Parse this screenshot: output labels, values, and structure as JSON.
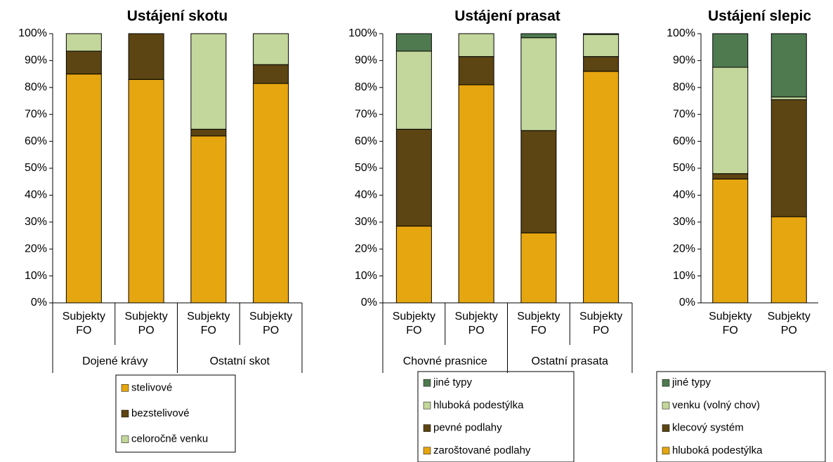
{
  "chart_data": [
    {
      "type": "stacked_bar",
      "title": "Ustájení skotu",
      "categories": [
        "Subjekty FO",
        "Subjekty PO",
        "Subjekty FO",
        "Subjekty PO"
      ],
      "groups": [
        "Dojené krávy",
        "Ostatní skot"
      ],
      "series": [
        {
          "name": "stelivové",
          "color": "#e6a60f",
          "values": [
            85,
            83,
            62,
            81.5
          ]
        },
        {
          "name": "bezstelivové",
          "color": "#5c4512",
          "values": [
            8.5,
            17,
            2.5,
            7
          ]
        },
        {
          "name": "celoročně venku",
          "color": "#c3d69b",
          "values": [
            6.5,
            0,
            35.5,
            11.5
          ]
        }
      ],
      "legend_reversed": false,
      "ylim": [
        0,
        100
      ],
      "yticks": [
        {
          "value": 0,
          "label": "0%"
        },
        {
          "value": 10,
          "label": "10%"
        },
        {
          "value": 20,
          "label": "20%"
        },
        {
          "value": 30,
          "label": "30%"
        },
        {
          "value": 40,
          "label": "40%"
        },
        {
          "value": 50,
          "label": "50%"
        },
        {
          "value": 60,
          "label": "60%"
        },
        {
          "value": 70,
          "label": "70%"
        },
        {
          "value": 80,
          "label": "80%"
        },
        {
          "value": 90,
          "label": "90%"
        },
        {
          "value": 100,
          "label": "100%"
        }
      ]
    },
    {
      "type": "stacked_bar",
      "title": "Ustájení prasat",
      "categories": [
        "Subjekty FO",
        "Subjekty PO",
        "Subjekty FO",
        "Subjekty PO"
      ],
      "groups": [
        "Chovné prasnice",
        "Ostatní prasata"
      ],
      "series": [
        {
          "name": "zaroštované podlahy",
          "color": "#e6a60f",
          "values": [
            28.5,
            81,
            26,
            86
          ]
        },
        {
          "name": "pevné podlahy",
          "color": "#5c4512",
          "values": [
            36,
            10.5,
            38,
            5.5
          ]
        },
        {
          "name": "hluboká podestýlka",
          "color": "#c3d69b",
          "values": [
            29,
            8.5,
            34.5,
            8.2
          ]
        },
        {
          "name": "jiné typy",
          "color": "#4f7a50",
          "values": [
            6.5,
            0,
            1.5,
            0.3
          ]
        }
      ],
      "legend_reversed": true,
      "ylim": [
        0,
        100
      ],
      "yticks": [
        {
          "value": 0,
          "label": "0%"
        },
        {
          "value": 10,
          "label": "10%"
        },
        {
          "value": 20,
          "label": "20%"
        },
        {
          "value": 30,
          "label": "30%"
        },
        {
          "value": 40,
          "label": "40%"
        },
        {
          "value": 50,
          "label": "50%"
        },
        {
          "value": 60,
          "label": "60%"
        },
        {
          "value": 70,
          "label": "70%"
        },
        {
          "value": 80,
          "label": "80%"
        },
        {
          "value": 90,
          "label": "90%"
        },
        {
          "value": 100,
          "label": "100%"
        }
      ]
    },
    {
      "type": "stacked_bar",
      "title": "Ustájení slepic",
      "categories": [
        "Subjekty FO",
        "Subjekty PO"
      ],
      "series": [
        {
          "name": "hluboká podestýlka",
          "color": "#e6a60f",
          "values": [
            46,
            32
          ]
        },
        {
          "name": "klecový systém",
          "color": "#5c4512",
          "values": [
            2,
            43.5
          ]
        },
        {
          "name": "venku (volný chov)",
          "color": "#c3d69b",
          "values": [
            39.5,
            1
          ]
        },
        {
          "name": "jiné typy",
          "color": "#4f7a50",
          "values": [
            12.5,
            23.5
          ]
        }
      ],
      "legend_reversed": true,
      "ylim": [
        0,
        100
      ],
      "yticks": [
        {
          "value": 0,
          "label": "0%"
        },
        {
          "value": 10,
          "label": "10%"
        },
        {
          "value": 20,
          "label": "20%"
        },
        {
          "value": 30,
          "label": "30%"
        },
        {
          "value": 40,
          "label": "40%"
        },
        {
          "value": 50,
          "label": "50%"
        },
        {
          "value": 60,
          "label": "60%"
        },
        {
          "value": 70,
          "label": "70%"
        },
        {
          "value": 80,
          "label": "80%"
        },
        {
          "value": 90,
          "label": "90%"
        },
        {
          "value": 100,
          "label": "100%"
        }
      ]
    }
  ]
}
